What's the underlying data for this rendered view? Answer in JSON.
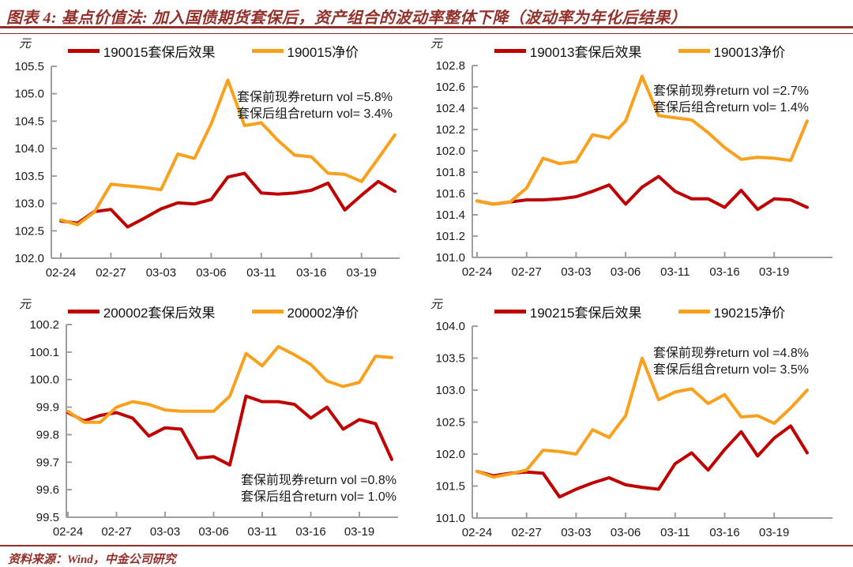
{
  "title": "图表 4:  基点价值法:  加入国债期货套保后，资产组合的波动率整体下降（波动率为年化后结果）",
  "footer_text": "资料来源：Wind，中金公司研究",
  "colors": {
    "hedged_line": "#C00000",
    "price_line": "#F9A01C",
    "brand_red": "#93302A",
    "axis_gray": "#9E9E9E",
    "text_dark": "#1A1A1A"
  },
  "chart_data": [
    {
      "type": "line",
      "bond_code": "190015",
      "unit": "元",
      "legend": {
        "hedged": "190015套保后效果",
        "price": "190015净价"
      },
      "annotation": [
        "套保前现券return vol =5.8%",
        "套保后组合return vol= 3.4%"
      ],
      "y_min": 102.0,
      "y_max": 105.5,
      "y_tick_labels": [
        "105.5",
        "105.0",
        "104.5",
        "104.0",
        "103.5",
        "103.0",
        "102.5",
        "102.0"
      ],
      "x_tick_labels": [
        "02-24",
        "02-27",
        "03-03",
        "03-06",
        "03-11",
        "03-16",
        "03-19"
      ],
      "x_tick_indices": [
        0,
        3,
        6,
        9,
        12,
        15,
        18
      ],
      "series": [
        {
          "name": "190015套保后效果",
          "color_key": "hedged",
          "values": [
            102.68,
            102.64,
            102.85,
            102.89,
            102.57,
            102.73,
            102.9,
            103.01,
            102.99,
            103.07,
            103.48,
            103.55,
            103.19,
            103.17,
            103.19,
            103.24,
            103.37,
            102.88,
            103.15,
            103.4,
            103.22
          ]
        },
        {
          "name": "190015净价",
          "color_key": "price",
          "values": [
            102.7,
            102.61,
            102.84,
            103.35,
            103.32,
            103.29,
            103.25,
            103.9,
            103.82,
            104.45,
            105.25,
            104.42,
            104.47,
            104.15,
            103.88,
            103.85,
            103.55,
            103.53,
            103.4,
            103.82,
            104.25
          ]
        }
      ]
    },
    {
      "type": "line",
      "bond_code": "190013",
      "unit": "元",
      "legend": {
        "hedged": "190013套保后效果",
        "price": "190013净价"
      },
      "annotation": [
        "套保前现券return vol =2.7%",
        "套保后组合return vol= 1.4%"
      ],
      "y_min": 101.0,
      "y_max": 102.8,
      "y_tick_labels": [
        "102.8",
        "102.6",
        "102.4",
        "102.2",
        "102.0",
        "101.8",
        "101.6",
        "101.4",
        "101.2",
        "101.0"
      ],
      "x_tick_labels": [
        "02-24",
        "02-27",
        "03-03",
        "03-06",
        "03-11",
        "03-16",
        "03-19"
      ],
      "x_tick_indices": [
        0,
        3,
        6,
        9,
        12,
        15,
        18
      ],
      "series": [
        {
          "name": "190013套保后效果",
          "color_key": "hedged",
          "values": [
            101.53,
            101.5,
            101.52,
            101.54,
            101.54,
            101.55,
            101.57,
            101.62,
            101.68,
            101.5,
            101.66,
            101.76,
            101.62,
            101.55,
            101.55,
            101.47,
            101.63,
            101.45,
            101.55,
            101.54,
            101.47
          ]
        },
        {
          "name": "190013净价",
          "color_key": "price",
          "values": [
            101.53,
            101.5,
            101.52,
            101.65,
            101.93,
            101.88,
            101.9,
            102.15,
            102.12,
            102.28,
            102.7,
            102.33,
            102.31,
            102.29,
            102.17,
            102.03,
            101.92,
            101.94,
            101.93,
            101.91,
            102.28
          ]
        }
      ]
    },
    {
      "type": "line",
      "bond_code": "200002",
      "unit": "元",
      "legend": {
        "hedged": "200002套保后效果",
        "price": "200002净价"
      },
      "annotation": [
        "套保前现券return vol =0.8%",
        "套保后组合return vol= 1.0%"
      ],
      "y_min": 99.5,
      "y_max": 100.2,
      "y_tick_labels": [
        "100.2",
        "100.1",
        "100.0",
        "99.9",
        "99.8",
        "99.7",
        "99.6",
        "99.5"
      ],
      "x_tick_labels": [
        "02-24",
        "02-27",
        "03-03",
        "03-06",
        "03-11",
        "03-16",
        "03-19"
      ],
      "x_tick_indices": [
        0,
        3,
        6,
        9,
        12,
        15,
        18
      ],
      "series": [
        {
          "name": "200002套保后效果",
          "color_key": "hedged",
          "values": [
            99.88,
            99.85,
            99.87,
            99.88,
            99.86,
            99.795,
            99.825,
            99.82,
            99.715,
            99.72,
            99.69,
            99.94,
            99.92,
            99.92,
            99.91,
            99.86,
            99.9,
            99.82,
            99.855,
            99.84,
            99.71
          ]
        },
        {
          "name": "200002净价",
          "color_key": "price",
          "values": [
            99.885,
            99.845,
            99.845,
            99.9,
            99.92,
            99.91,
            99.89,
            99.885,
            99.885,
            99.885,
            99.94,
            100.095,
            100.05,
            100.12,
            100.09,
            100.055,
            99.995,
            99.975,
            99.99,
            100.085,
            100.08
          ]
        }
      ]
    },
    {
      "type": "line",
      "bond_code": "190215",
      "unit": "元",
      "legend": {
        "hedged": "190215套保后效果",
        "price": "190215净价"
      },
      "annotation": [
        "套保前现券return vol =4.8%",
        "套保后组合return vol= 3.5%"
      ],
      "y_min": 101.0,
      "y_max": 104.0,
      "y_tick_labels": [
        "104.0",
        "103.5",
        "103.0",
        "102.5",
        "102.0",
        "101.5",
        "101.0"
      ],
      "x_tick_labels": [
        "02-24",
        "02-27",
        "03-03",
        "03-06",
        "03-11",
        "03-16",
        "03-19"
      ],
      "x_tick_indices": [
        0,
        3,
        6,
        9,
        12,
        15,
        18
      ],
      "series": [
        {
          "name": "190215套保后效果",
          "color_key": "hedged",
          "values": [
            101.73,
            101.66,
            101.7,
            101.72,
            101.7,
            101.33,
            101.45,
            101.55,
            101.63,
            101.52,
            101.48,
            101.45,
            101.85,
            102.02,
            101.75,
            102.07,
            102.35,
            101.97,
            102.25,
            102.44,
            102.02
          ]
        },
        {
          "name": "190215净价",
          "color_key": "price",
          "values": [
            101.73,
            101.64,
            101.69,
            101.75,
            102.06,
            102.04,
            102.0,
            102.38,
            102.26,
            102.6,
            103.5,
            102.85,
            102.97,
            103.02,
            102.79,
            102.93,
            102.58,
            102.6,
            102.48,
            102.72,
            103.0
          ]
        }
      ]
    }
  ]
}
